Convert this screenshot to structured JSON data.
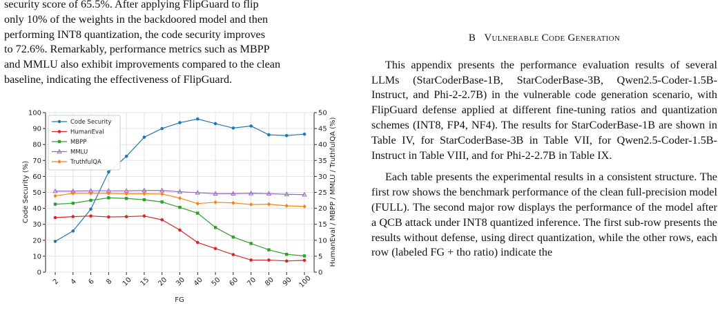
{
  "left_text": {
    "line0": "security score of 65.5%. After applying FlipGuard to flip",
    "line1": "only 10% of the weights in the backdoored model and then",
    "line2": "performing INT8 quantization, the code security improves",
    "line3": "to 72.6%. Remarkably, performance metrics such as MBPP",
    "line4": "and MMLU also exhibit improvements compared to the clean",
    "line5": "baseline, indicating the effectiveness of FlipGuard."
  },
  "right_text": {
    "heading_num": "B",
    "heading_title": "Vulnerable Code Generation",
    "para1": "This appendix presents the performance evaluation results of several LLMs (StarCoderBase-1B, StarCoderBase-3B, Qwen2.5-Coder-1.5B-Instruct, and Phi-2-2.7B) in the vulnerable code generation scenario, with FlipGuard defense applied at different fine-tuning ratios and quantization schemes (INT8, FP4, NF4). The results for StarCoderBase-1B are shown in Table IV, for StarCoderBase-3B in Table VII, for Qwen2.5-Coder-1.5B-Instruct in Table VIII, and for Phi-2-2.7B in Table IX.",
    "para2": "Each table presents the experimental results in a consistent structure. The first row shows the benchmark performance of the clean full-precision model (FULL). The second major row displays the performance of the model after a QCB attack under INT8 quantized inference. The first sub-row presents the results without defense, using direct quantization, while the other rows, each row (labeled FG + tho ratio) indicate the"
  },
  "chart_data": {
    "type": "line",
    "categories": [
      "2",
      "4",
      "6",
      "8",
      "10",
      "15",
      "20",
      "30",
      "40",
      "50",
      "60",
      "70",
      "80",
      "90",
      "100"
    ],
    "xlabel": "FG",
    "ylabel": "Code Security (%)",
    "ylabel_right": "HumanEval / MBPP / MMLU / TruthfulQA (%)",
    "ylim": [
      0,
      100
    ],
    "ylim_right": [
      0,
      50
    ],
    "yticks": [
      "0",
      "10",
      "20",
      "30",
      "40",
      "50",
      "60",
      "70",
      "80",
      "90",
      "100"
    ],
    "yticks_right": [
      "0",
      "5",
      "10",
      "15",
      "20",
      "25",
      "30",
      "35",
      "40",
      "45",
      "50"
    ],
    "grid": true,
    "legend_placement": "top-left",
    "series": [
      {
        "name": "Code Security",
        "axis": "left",
        "color": "#1f77b4",
        "marker": "circle",
        "values": [
          19.3,
          25.8,
          39.5,
          62.8,
          72.6,
          84.6,
          90.0,
          93.7,
          96.0,
          93.1,
          90.3,
          91.6,
          86.1,
          85.6,
          86.5
        ]
      },
      {
        "name": "HumanEval",
        "axis": "right",
        "color": "#d62728",
        "marker": "circle",
        "values": [
          17.1,
          17.4,
          17.6,
          17.3,
          17.4,
          17.6,
          16.4,
          13.2,
          9.3,
          7.4,
          5.5,
          3.8,
          3.8,
          3.5,
          3.7
        ]
      },
      {
        "name": "MBPP",
        "axis": "right",
        "color": "#2ca02c",
        "marker": "square",
        "values": [
          21.3,
          21.6,
          22.5,
          23.3,
          23.1,
          22.7,
          22.0,
          20.3,
          18.5,
          14.0,
          11.0,
          9.0,
          7.0,
          5.6,
          5.1
        ]
      },
      {
        "name": "MMLU",
        "axis": "right",
        "color": "#9467bd",
        "marker": "triangle",
        "values": [
          25.4,
          25.4,
          25.5,
          25.5,
          25.5,
          25.6,
          25.6,
          25.2,
          24.9,
          24.6,
          24.6,
          24.7,
          24.6,
          24.4,
          24.3
        ]
      },
      {
        "name": "TruthfulQA",
        "axis": "right",
        "color": "#ff7f0e",
        "marker": "diamond",
        "values": [
          23.9,
          24.7,
          24.7,
          24.7,
          24.6,
          24.6,
          24.5,
          23.2,
          21.5,
          21.9,
          21.7,
          21.2,
          21.3,
          20.8,
          20.6
        ]
      }
    ]
  }
}
